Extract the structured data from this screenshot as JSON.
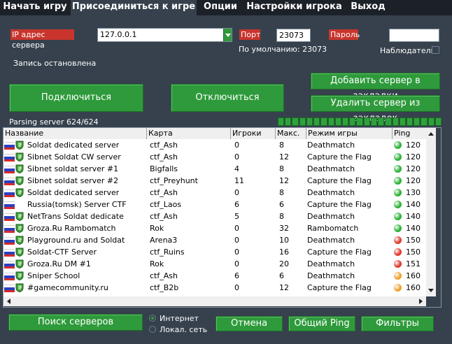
{
  "tabs": [
    "Начать игру",
    "Присоединиться к игре",
    "Опции",
    "Настройки игрока",
    "Выход"
  ],
  "server": {
    "address_label": "IP адрес сервера",
    "address_value": "127.0.0.1",
    "port_label": "Порт",
    "port_value": "23073",
    "default_text": "По умолчанию: 23073",
    "password_label": "Пароль",
    "password_value": "",
    "observer_label": "Наблюдатель"
  },
  "status_text": "Запись остановлена",
  "buttons": {
    "connect": "Подключиться",
    "disconnect": "Отключиться",
    "add_bookmark": "Добавить сервер в закладки",
    "remove_bookmark": "Удалить сервер из закладок",
    "search": "Поиск серверов",
    "cancel": "Отмена",
    "ping_all": "Общий Ping",
    "filters": "Фильтры"
  },
  "parsing_text": "Parsing server 624/624",
  "progress_fraction": 1.0,
  "table": {
    "headers": [
      "Название",
      "Карта",
      "Игроки",
      "Макс.",
      "Режим игры",
      "Ping"
    ],
    "rows": [
      {
        "name": "Soldat dedicated server",
        "map": "ctf_Ash",
        "players": "0",
        "max": "8",
        "mode": "Deathmatch",
        "ping": "120",
        "ping_color": "#2fb33a",
        "shield": true
      },
      {
        "name": "Sibnet Soldat CW server",
        "map": "ctf_Ash",
        "players": "0",
        "max": "12",
        "mode": "Capture the Flag",
        "ping": "120",
        "ping_color": "#2fb33a",
        "shield": true
      },
      {
        "name": "Sibnet soldat server #1",
        "map": "Bigfalls",
        "players": "4",
        "max": "8",
        "mode": "Deathmatch",
        "ping": "120",
        "ping_color": "#2fb33a",
        "shield": true
      },
      {
        "name": "Sibnet soldat server #2",
        "map": "ctf_Preyhunt",
        "players": "11",
        "max": "12",
        "mode": "Capture the Flag",
        "ping": "120",
        "ping_color": "#2fb33a",
        "shield": true
      },
      {
        "name": "Soldat dedicated server",
        "map": "ctf_Ash",
        "players": "0",
        "max": "8",
        "mode": "Deathmatch",
        "ping": "130",
        "ping_color": "#2fb33a",
        "shield": true
      },
      {
        "name": "Russia(tomsk) Server CTF",
        "map": "ctf_Laos",
        "players": "6",
        "max": "6",
        "mode": "Capture the Flag",
        "ping": "140",
        "ping_color": "#2fb33a",
        "shield": false
      },
      {
        "name": "NetTrans Soldat dedicate",
        "map": "ctf_Ash",
        "players": "5",
        "max": "8",
        "mode": "Deathmatch",
        "ping": "140",
        "ping_color": "#2fb33a",
        "shield": true
      },
      {
        "name": "Groza.Ru Rambomatch",
        "map": "Rok",
        "players": "0",
        "max": "32",
        "mode": "Rambomatch",
        "ping": "140",
        "ping_color": "#2fb33a",
        "shield": true
      },
      {
        "name": "Playground.ru and Soldat",
        "map": "Arena3",
        "players": "0",
        "max": "10",
        "mode": "Deathmatch",
        "ping": "150",
        "ping_color": "#e23a2e",
        "shield": true
      },
      {
        "name": "Soldat-CTF Server",
        "map": "ctf_Ruins",
        "players": "0",
        "max": "16",
        "mode": "Capture the Flag",
        "ping": "150",
        "ping_color": "#e23a2e",
        "shield": true
      },
      {
        "name": "Groza.Ru DM #1",
        "map": "Rok",
        "players": "0",
        "max": "20",
        "mode": "Deathmatch",
        "ping": "151",
        "ping_color": "#e23a2e",
        "shield": true
      },
      {
        "name": "Sniper School",
        "map": "ctf_Ash",
        "players": "6",
        "max": "6",
        "mode": "Deathmatch",
        "ping": "160",
        "ping_color": "#f0a030",
        "shield": true
      },
      {
        "name": "#gamecommunity.ru",
        "map": "ctf_B2b",
        "players": "0",
        "max": "12",
        "mode": "Capture the Flag",
        "ping": "160",
        "ping_color": "#f0a030",
        "shield": true
      }
    ]
  },
  "network": {
    "internet": "Интернет",
    "lan": "Локал. сеть"
  },
  "icons": {
    "flag": "russia-flag-icon",
    "server": "soldat-shield-icon",
    "ping": "ping-dot-icon"
  },
  "colors": {
    "background": "#36414d",
    "button": "#2e9a3b",
    "label_red": "#c9342c"
  }
}
